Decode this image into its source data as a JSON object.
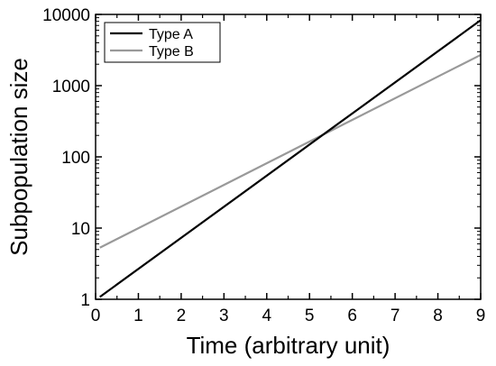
{
  "chart_data": {
    "type": "line",
    "xlabel": "Time (arbitrary unit)",
    "ylabel": "Subpopulation size",
    "xlim": [
      0,
      9
    ],
    "ylim": [
      1,
      10000
    ],
    "yscale": "log",
    "grid": false,
    "legend_position": "top-left",
    "xticks": [
      "0",
      "1",
      "2",
      "3",
      "4",
      "5",
      "6",
      "7",
      "8",
      "9"
    ],
    "yticks": [
      {
        "value": 1,
        "label": "1"
      },
      {
        "value": 10,
        "label": "10"
      },
      {
        "value": 100,
        "label": "100"
      },
      {
        "value": 1000,
        "label": "1000"
      },
      {
        "value": 10000,
        "label": "10000"
      }
    ],
    "series": [
      {
        "name": "Type A",
        "color": "#000000",
        "x": [
          0.1,
          9
        ],
        "y": [
          1.08,
          8300
        ]
      },
      {
        "name": "Type B",
        "color": "#999999",
        "x": [
          0.1,
          9
        ],
        "y": [
          5.3,
          2700
        ]
      }
    ]
  }
}
